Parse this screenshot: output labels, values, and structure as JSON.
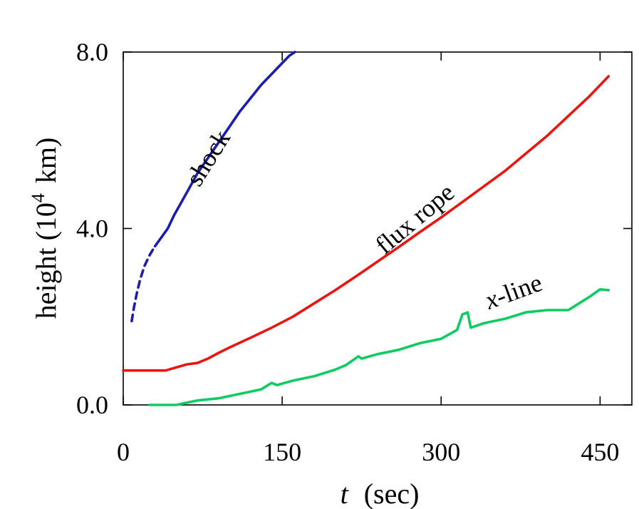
{
  "chart_data": {
    "type": "line",
    "xlabel_italic": "t",
    "xlabel_unit": "(sec)",
    "ylabel_main": "height (10",
    "ylabel_exp": "4",
    "ylabel_unit": "km)",
    "xlim": [
      0,
      480
    ],
    "ylim": [
      0,
      8
    ],
    "xticks": [
      0,
      150,
      300,
      450
    ],
    "xtick_labels": [
      "0",
      "150",
      "300",
      "450"
    ],
    "yticks": [
      0,
      4,
      8
    ],
    "ytick_labels": [
      "0.0",
      "4.0",
      "8.0"
    ],
    "grid": false,
    "series": [
      {
        "name": "shock",
        "label_parts": [
          "shock"
        ],
        "color": "#1c1cb0",
        "dashed_points": [
          [
            8,
            1.9
          ],
          [
            10,
            2.2
          ],
          [
            13,
            2.55
          ],
          [
            16,
            2.85
          ],
          [
            20,
            3.15
          ],
          [
            25,
            3.4
          ],
          [
            30,
            3.6
          ]
        ],
        "points": [
          [
            30,
            3.6
          ],
          [
            36,
            3.8
          ],
          [
            42,
            4.0
          ],
          [
            48,
            4.3
          ],
          [
            55,
            4.6
          ],
          [
            62,
            4.9
          ],
          [
            70,
            5.25
          ],
          [
            80,
            5.6
          ],
          [
            90,
            5.95
          ],
          [
            100,
            6.3
          ],
          [
            110,
            6.65
          ],
          [
            120,
            6.95
          ],
          [
            130,
            7.25
          ],
          [
            140,
            7.5
          ],
          [
            150,
            7.75
          ],
          [
            157,
            7.92
          ],
          [
            162,
            8.0
          ]
        ]
      },
      {
        "name": "flux rope",
        "label_parts": [
          "flux rope"
        ],
        "color": "#e8160f",
        "points": [
          [
            0,
            0.78
          ],
          [
            20,
            0.78
          ],
          [
            40,
            0.78
          ],
          [
            50,
            0.85
          ],
          [
            60,
            0.92
          ],
          [
            70,
            0.95
          ],
          [
            80,
            1.05
          ],
          [
            90,
            1.18
          ],
          [
            100,
            1.3
          ],
          [
            120,
            1.52
          ],
          [
            140,
            1.75
          ],
          [
            160,
            2.0
          ],
          [
            180,
            2.3
          ],
          [
            200,
            2.6
          ],
          [
            220,
            2.92
          ],
          [
            240,
            3.25
          ],
          [
            260,
            3.58
          ],
          [
            280,
            3.92
          ],
          [
            300,
            4.25
          ],
          [
            320,
            4.6
          ],
          [
            340,
            4.95
          ],
          [
            360,
            5.3
          ],
          [
            380,
            5.7
          ],
          [
            400,
            6.1
          ],
          [
            420,
            6.55
          ],
          [
            440,
            7.0
          ],
          [
            458,
            7.45
          ]
        ]
      },
      {
        "name": "x-line",
        "label_parts": [
          "x",
          "-line"
        ],
        "color": "#0ecb62",
        "points": [
          [
            25,
            0.0
          ],
          [
            50,
            0.0
          ],
          [
            60,
            0.05
          ],
          [
            70,
            0.1
          ],
          [
            90,
            0.15
          ],
          [
            110,
            0.25
          ],
          [
            130,
            0.35
          ],
          [
            140,
            0.5
          ],
          [
            145,
            0.45
          ],
          [
            160,
            0.55
          ],
          [
            180,
            0.65
          ],
          [
            200,
            0.8
          ],
          [
            210,
            0.9
          ],
          [
            222,
            1.1
          ],
          [
            225,
            1.05
          ],
          [
            240,
            1.15
          ],
          [
            260,
            1.25
          ],
          [
            280,
            1.4
          ],
          [
            300,
            1.5
          ],
          [
            315,
            1.7
          ],
          [
            320,
            2.05
          ],
          [
            325,
            2.1
          ],
          [
            328,
            1.75
          ],
          [
            340,
            1.85
          ],
          [
            360,
            1.95
          ],
          [
            380,
            2.1
          ],
          [
            400,
            2.15
          ],
          [
            420,
            2.15
          ],
          [
            430,
            2.3
          ],
          [
            440,
            2.45
          ],
          [
            450,
            2.62
          ],
          [
            458,
            2.6
          ]
        ]
      }
    ]
  }
}
